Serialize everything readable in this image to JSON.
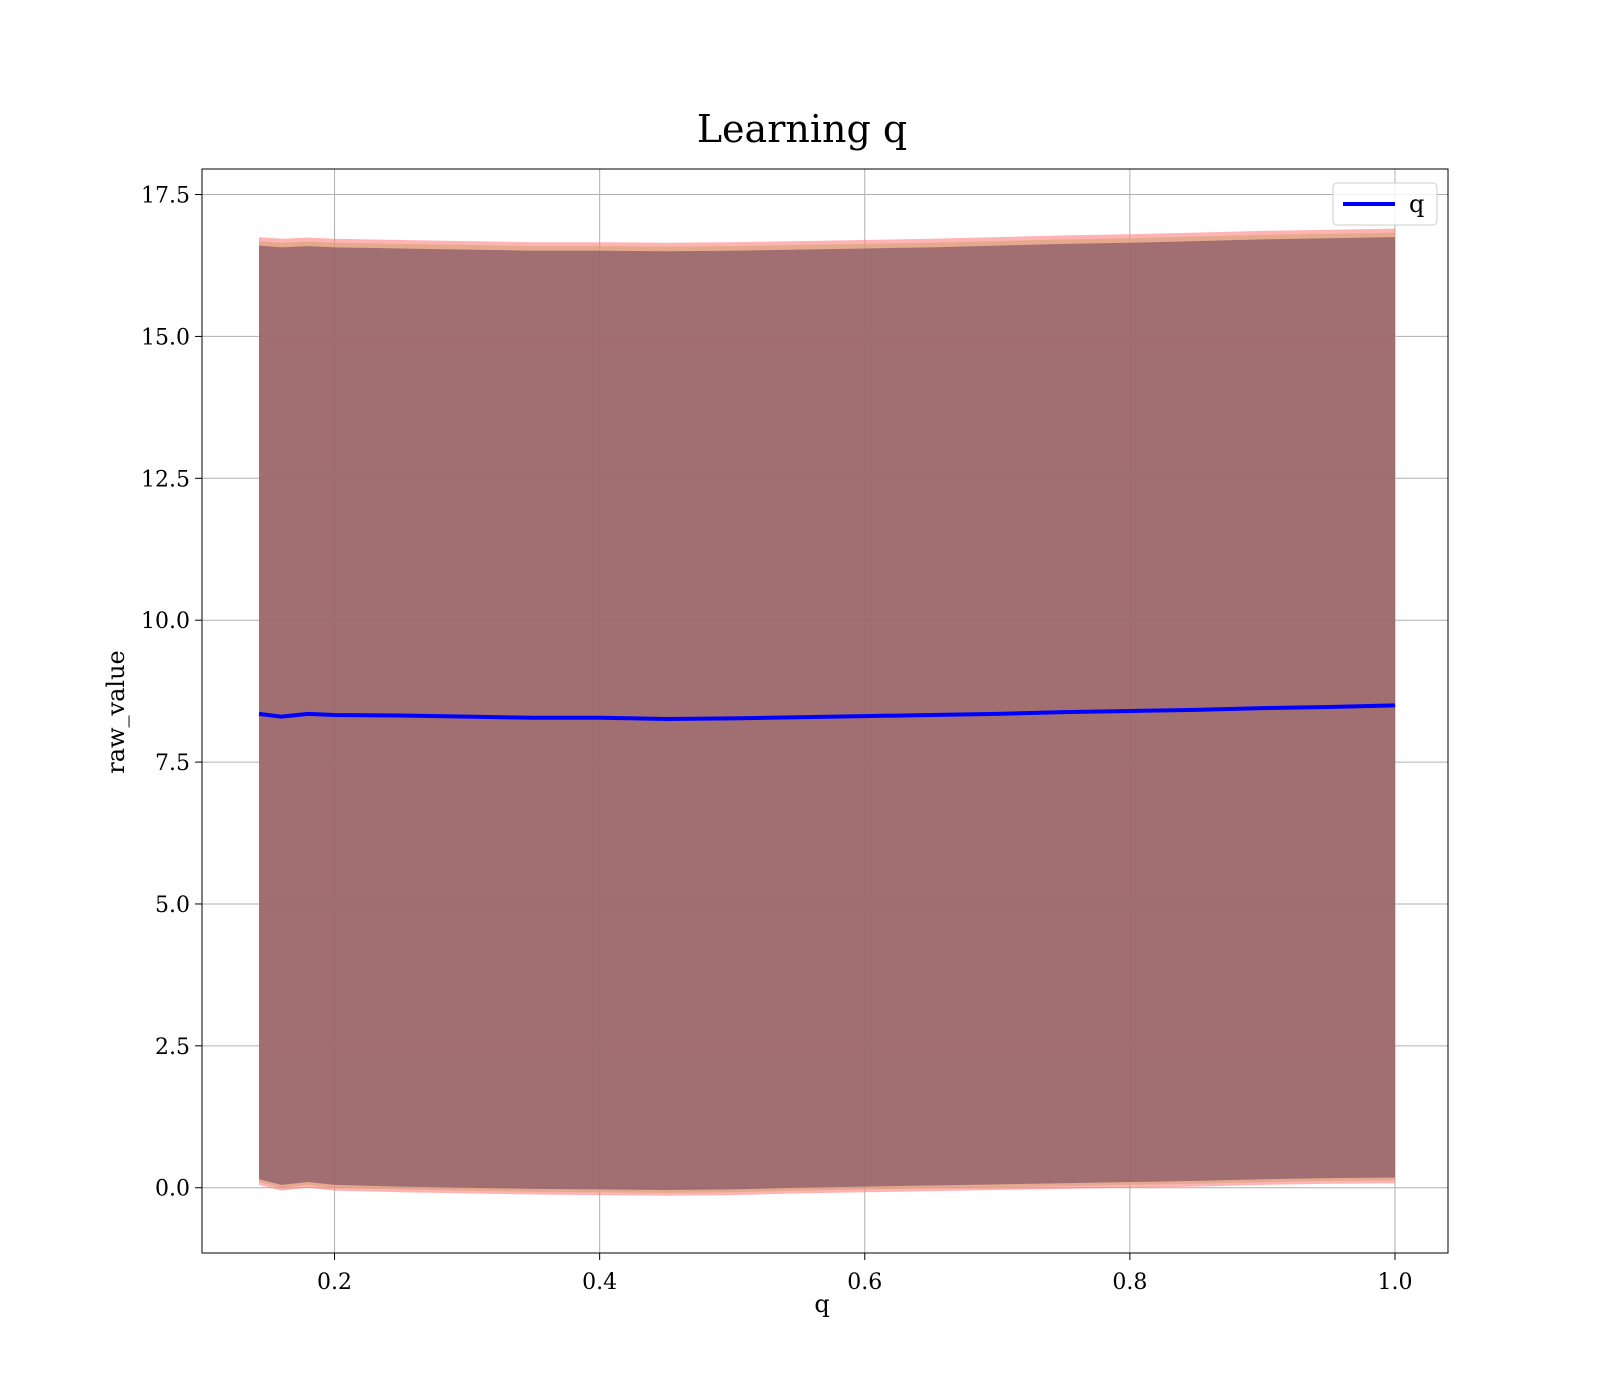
{
  "chart_data": {
    "type": "line",
    "title": "Learning q",
    "xlabel": "q",
    "ylabel": "raw_value",
    "xlim": [
      0.1,
      1.04
    ],
    "ylim": [
      -1.15,
      17.95
    ],
    "xticks": [
      0.2,
      0.4,
      0.6,
      0.8,
      1.0
    ],
    "xtick_labels": [
      "0.2",
      "0.4",
      "0.6",
      "0.8",
      "1.0"
    ],
    "yticks": [
      0.0,
      2.5,
      5.0,
      7.5,
      10.0,
      12.5,
      15.0,
      17.5
    ],
    "ytick_labels": [
      "0.0",
      "2.5",
      "5.0",
      "7.5",
      "10.0",
      "12.5",
      "15.0",
      "17.5"
    ],
    "grid": true,
    "legend": {
      "position": "top-right",
      "entries": [
        "q"
      ]
    },
    "series": [
      {
        "name": "q",
        "color": "#0000ff",
        "x": [
          0.143,
          0.16,
          0.18,
          0.2,
          0.25,
          0.3,
          0.35,
          0.4,
          0.45,
          0.5,
          0.55,
          0.6,
          0.65,
          0.7,
          0.75,
          0.8,
          0.85,
          0.9,
          0.95,
          1.0
        ],
        "y": [
          8.35,
          8.3,
          8.35,
          8.33,
          8.32,
          8.3,
          8.28,
          8.28,
          8.26,
          8.27,
          8.29,
          8.31,
          8.33,
          8.35,
          8.38,
          8.4,
          8.42,
          8.45,
          8.47,
          8.5
        ]
      }
    ],
    "bands": [
      {
        "color": "#ff8080",
        "opacity": 0.6,
        "lower": [
          0.05,
          -0.05,
          0.0,
          -0.05,
          -0.08,
          -0.1,
          -0.12,
          -0.13,
          -0.14,
          -0.13,
          -0.1,
          -0.08,
          -0.06,
          -0.04,
          -0.02,
          0.0,
          0.02,
          0.05,
          0.07,
          0.08
        ],
        "upper": [
          16.75,
          16.72,
          16.74,
          16.72,
          16.7,
          16.68,
          16.66,
          16.66,
          16.65,
          16.66,
          16.68,
          16.7,
          16.72,
          16.75,
          16.78,
          16.8,
          16.83,
          16.86,
          16.88,
          16.9
        ]
      },
      {
        "color": "#d4a373",
        "opacity": 0.6,
        "lower": [
          0.1,
          0.0,
          0.05,
          0.0,
          -0.03,
          -0.05,
          -0.07,
          -0.08,
          -0.09,
          -0.08,
          -0.05,
          -0.03,
          -0.01,
          0.01,
          0.03,
          0.05,
          0.07,
          0.1,
          0.12,
          0.13
        ],
        "upper": [
          16.68,
          16.65,
          16.67,
          16.65,
          16.63,
          16.61,
          16.59,
          16.59,
          16.58,
          16.59,
          16.61,
          16.63,
          16.65,
          16.68,
          16.71,
          16.73,
          16.76,
          16.79,
          16.81,
          16.83
        ]
      },
      {
        "color": "#8a5a6a",
        "opacity": 0.75,
        "lower": [
          0.15,
          0.05,
          0.1,
          0.05,
          0.02,
          0.0,
          -0.02,
          -0.03,
          -0.04,
          -0.03,
          0.0,
          0.02,
          0.04,
          0.06,
          0.08,
          0.1,
          0.12,
          0.15,
          0.17,
          0.18
        ],
        "upper": [
          16.6,
          16.57,
          16.59,
          16.57,
          16.55,
          16.53,
          16.51,
          16.51,
          16.5,
          16.51,
          16.53,
          16.55,
          16.57,
          16.6,
          16.63,
          16.65,
          16.68,
          16.71,
          16.73,
          16.75
        ]
      }
    ]
  }
}
